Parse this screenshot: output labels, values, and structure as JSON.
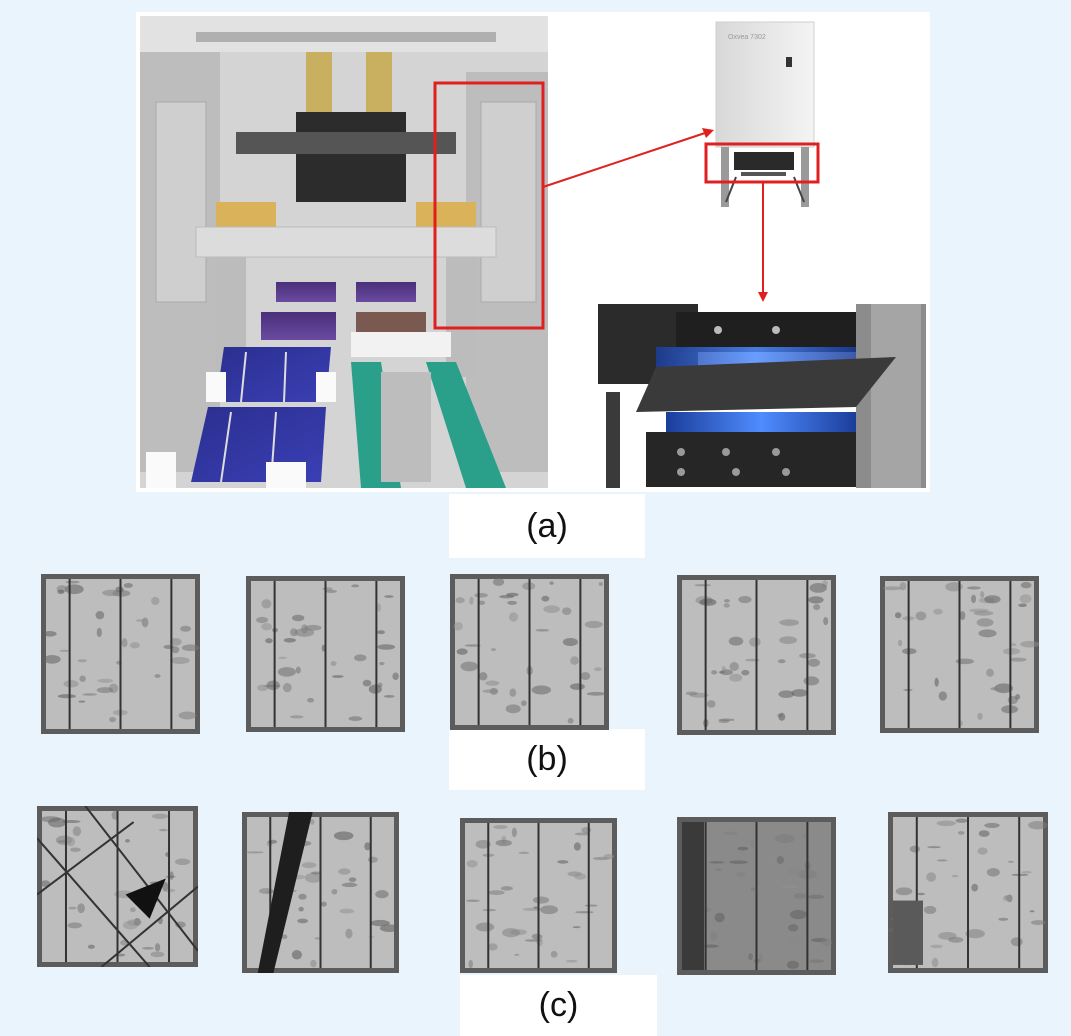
{
  "figure": {
    "captions": {
      "a": "(a)",
      "b": "(b)",
      "c": "(c)"
    },
    "device_label": "Oxvea 7302"
  },
  "colors": {
    "background": "#eaf4fd",
    "highlight_box": "#e0201e",
    "arrow": "#e0201e"
  }
}
